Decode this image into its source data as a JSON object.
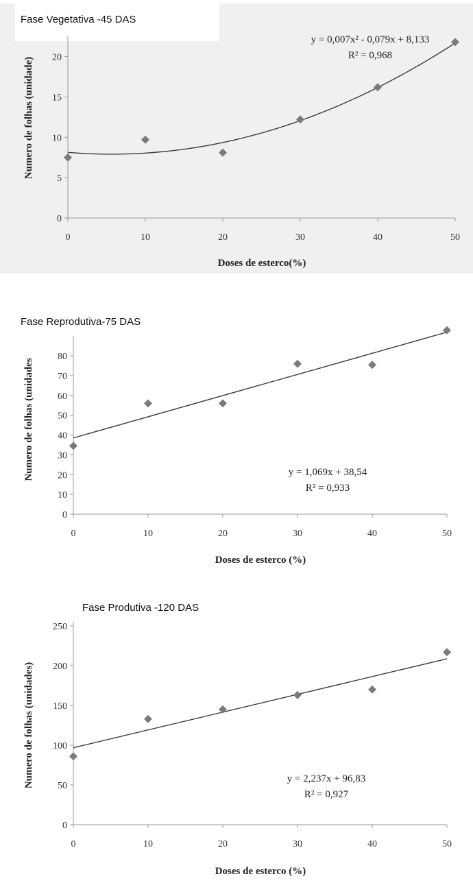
{
  "chart_data": [
    {
      "type": "scatter",
      "title": "Fase Vegetativa -45 DAS",
      "xlabel": "Doses de esterco(%)",
      "ylabel": "Numero de folhas (unidade)",
      "xlim": [
        0,
        50
      ],
      "ylim": [
        0,
        22
      ],
      "xticks": [
        "0",
        "10",
        "20",
        "30",
        "40",
        "50"
      ],
      "yticks": [
        "0",
        "5",
        "10",
        "15",
        "20"
      ],
      "x": [
        0,
        10,
        20,
        30,
        40,
        50
      ],
      "y": [
        7.5,
        9.7,
        8.1,
        12.2,
        16.2,
        21.8
      ],
      "trendline": {
        "kind": "quadratic",
        "coefficients": [
          0.007,
          -0.079,
          8.133
        ]
      },
      "equation": "y = 0,007x² - 0,079x + 8,133",
      "r2": "R² = 0,968",
      "grid": false
    },
    {
      "type": "scatter",
      "title": "Fase Reprodutiva-75 DAS",
      "xlabel": "Doses de esterco (%)",
      "ylabel": "Numero de folhas (unidades",
      "xlim": [
        0,
        50
      ],
      "ylim": [
        0,
        88
      ],
      "xticks": [
        "0",
        "10",
        "20",
        "30",
        "40",
        "50"
      ],
      "yticks": [
        "0",
        "10",
        "20",
        "30",
        "40",
        "50",
        "60",
        "70",
        "80"
      ],
      "x": [
        0,
        10,
        20,
        30,
        40,
        50
      ],
      "y": [
        34.5,
        56,
        56,
        76,
        75.5,
        93
      ],
      "trendline": {
        "kind": "linear",
        "coefficients": [
          1.069,
          38.54
        ]
      },
      "equation": "y = 1,069x + 38,54",
      "r2": "R² = 0,933",
      "grid": false
    },
    {
      "type": "scatter",
      "title": "Fase Produtiva -120 DAS",
      "xlabel": "Doses de esterco (%)",
      "ylabel": "Numero de folhas (unidades)",
      "xlim": [
        0,
        50
      ],
      "ylim": [
        0,
        250
      ],
      "xticks": [
        "0",
        "10",
        "20",
        "30",
        "40",
        "50"
      ],
      "yticks": [
        "0",
        "50",
        "100",
        "150",
        "200",
        "250"
      ],
      "x": [
        0,
        10,
        20,
        30,
        40,
        50
      ],
      "y": [
        86,
        133,
        145,
        163,
        170,
        217
      ],
      "trendline": {
        "kind": "linear",
        "coefficients": [
          2.237,
          96.83
        ]
      },
      "equation": "y = 2,237x + 96,83",
      "r2": "R² = 0,927",
      "grid": false
    }
  ],
  "colors": {
    "marker": "#7a7a7a",
    "line": "#3a3a3a",
    "axis": "#999999",
    "panel1_bg": "#f0f0f0"
  }
}
